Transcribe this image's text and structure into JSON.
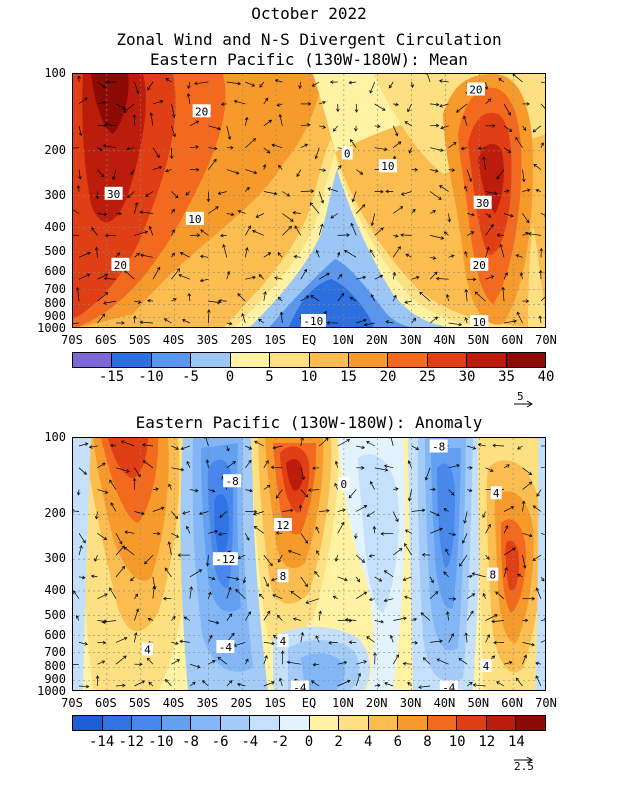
{
  "header": {
    "title": "October 2022",
    "line2": "Zonal Wind and N-S Divergent Circulation",
    "line3": "Eastern Pacific (130W-180W): Mean"
  },
  "panel2": {
    "title": "Eastern Pacific (130W-180W): Anomaly"
  },
  "chart_data": [
    {
      "type": "heatmap",
      "title": "Eastern Pacific (130W-180W): Mean",
      "x_ticks": [
        "70S",
        "60S",
        "50S",
        "40S",
        "30S",
        "20S",
        "10S",
        "EQ",
        "10N",
        "20N",
        "30N",
        "40N",
        "50N",
        "60N",
        "70N"
      ],
      "y_ticks": [
        "100",
        "200",
        "300",
        "400",
        "500",
        "600",
        "700",
        "800",
        "900",
        "1000"
      ],
      "y_scale": "log-pressure (reversed)",
      "ylim": [
        1000,
        100
      ],
      "grid": true,
      "colorbar": {
        "labels": [
          "-15",
          "-10",
          "-5",
          "0",
          "5",
          "10",
          "15",
          "20",
          "25",
          "30",
          "35",
          "40"
        ],
        "colors": [
          "#7b68d6",
          "#2c6fe0",
          "#5a95ee",
          "#9cc6f6",
          "#fff3a3",
          "#fde082",
          "#fbbd4f",
          "#f79a2c",
          "#f36a1f",
          "#e03e14",
          "#bc1c0c",
          "#8e0a06"
        ]
      },
      "contour_labels": [
        {
          "text": "20",
          "lat": -32,
          "p": 140
        },
        {
          "text": "0",
          "lat": 11,
          "p": 205
        },
        {
          "text": "10",
          "lat": 23,
          "p": 230
        },
        {
          "text": "20",
          "lat": 49,
          "p": 115
        },
        {
          "text": "30",
          "lat": -58,
          "p": 295
        },
        {
          "text": "10",
          "lat": -34,
          "p": 370
        },
        {
          "text": "30",
          "lat": 51,
          "p": 320
        },
        {
          "text": "20",
          "lat": -56,
          "p": 560
        },
        {
          "text": "20",
          "lat": 50,
          "p": 560
        },
        {
          "text": "-10",
          "lat": 1,
          "p": 930
        },
        {
          "text": "10",
          "lat": 50,
          "p": 940
        }
      ],
      "vector_reference": "5",
      "fields": {
        "max_westerly": {
          "value": 40,
          "location": "60S, 100-200 hPa"
        },
        "nh_jet": {
          "value": 30,
          "location": "50N, 200-300 hPa"
        },
        "min_easterly": {
          "value": -10,
          "location": "EQ-10N, 800-900 hPa"
        }
      }
    },
    {
      "type": "heatmap",
      "title": "Eastern Pacific (130W-180W): Anomaly",
      "x_ticks": [
        "70S",
        "60S",
        "50S",
        "40S",
        "30S",
        "20S",
        "10S",
        "EQ",
        "10N",
        "20N",
        "30N",
        "40N",
        "50N",
        "60N",
        "70N"
      ],
      "y_ticks": [
        "100",
        "200",
        "300",
        "400",
        "500",
        "600",
        "700",
        "800",
        "900",
        "1000"
      ],
      "y_scale": "log-pressure (reversed)",
      "ylim": [
        1000,
        100
      ],
      "grid": true,
      "colorbar": {
        "labels": [
          "-14",
          "-12",
          "-10",
          "-8",
          "-6",
          "-4",
          "-2",
          "0",
          "2",
          "4",
          "6",
          "8",
          "10",
          "12",
          "14"
        ],
        "colors": [
          "#1d5fd4",
          "#2f73e4",
          "#4888ec",
          "#63a0f2",
          "#82b6f6",
          "#a3cbf8",
          "#c4e0fa",
          "#e3f3fb",
          "#fff3a3",
          "#fde082",
          "#fbbd4f",
          "#f79a2c",
          "#f36a1f",
          "#e03e14",
          "#bc1c0c",
          "#8e0a06"
        ]
      },
      "contour_labels": [
        {
          "text": "-8",
          "lat": -23,
          "p": 148
        },
        {
          "text": "0",
          "lat": 10,
          "p": 152
        },
        {
          "text": "-8",
          "lat": 38,
          "p": 108
        },
        {
          "text": "4",
          "lat": 55,
          "p": 165
        },
        {
          "text": "12",
          "lat": -8,
          "p": 220
        },
        {
          "text": "-12",
          "lat": -25,
          "p": 300
        },
        {
          "text": "8",
          "lat": -8,
          "p": 350
        },
        {
          "text": "8",
          "lat": 54,
          "p": 345
        },
        {
          "text": "4",
          "lat": -48,
          "p": 680
        },
        {
          "text": "-4",
          "lat": -25,
          "p": 665
        },
        {
          "text": "4",
          "lat": -8,
          "p": 630
        },
        {
          "text": "4",
          "lat": 52,
          "p": 790
        },
        {
          "text": "-4",
          "lat": -3,
          "p": 960
        },
        {
          "text": "-4",
          "lat": 41,
          "p": 960
        }
      ],
      "vector_reference": "2.5"
    }
  ]
}
